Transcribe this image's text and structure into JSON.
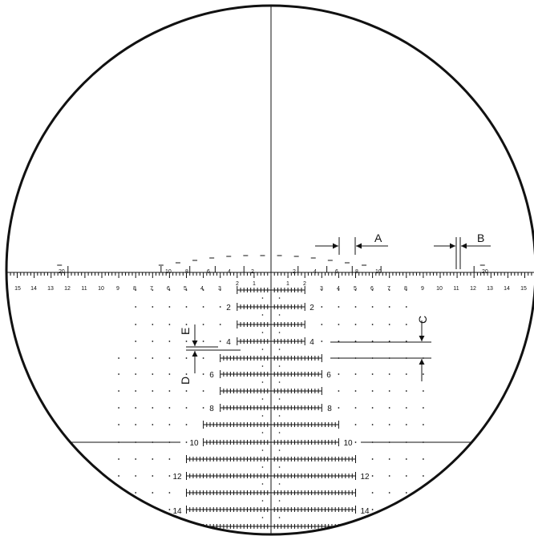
{
  "colors": {
    "ink": "#111111",
    "background": "#ffffff"
  },
  "scale_left": [
    "15",
    "14",
    "13",
    "12",
    "11",
    "10",
    "9",
    "8",
    "7",
    "6",
    "5",
    "4",
    "3",
    "2",
    "1"
  ],
  "scale_right": [
    "1",
    "2",
    "3",
    "4",
    "5",
    "6",
    "7",
    "8",
    "9",
    "10",
    "11",
    "12",
    "13",
    "14",
    "15"
  ],
  "upper_left_labels": [
    "20",
    "10",
    "8",
    "6",
    "4",
    "2"
  ],
  "upper_right_labels": [
    "2",
    "4",
    "6",
    "8",
    "10",
    "20"
  ],
  "row_labels": [
    "2",
    "4",
    "6",
    "8",
    "10",
    "12",
    "14"
  ],
  "callouts": {
    "a": "A",
    "b": "B",
    "c": "C",
    "d": "D",
    "e": "E"
  }
}
